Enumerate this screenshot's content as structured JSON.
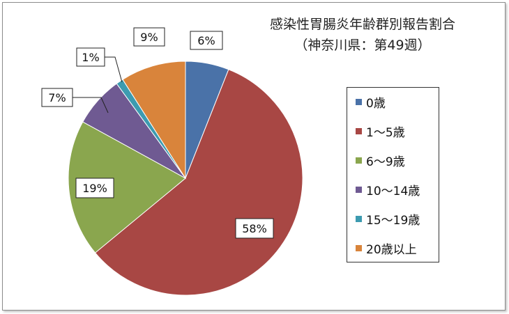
{
  "chart_data": {
    "type": "pie",
    "title": "感染性胃腸炎年齢群別報告割合",
    "subtitle": "（神奈川県：第49週）",
    "categories": [
      "0歳",
      "1〜5歳",
      "6〜9歳",
      "10〜14歳",
      "15〜19歳",
      "20歳以上"
    ],
    "values": [
      6,
      58,
      19,
      7,
      1,
      9
    ],
    "data_labels": [
      "6%",
      "58%",
      "19%",
      "7%",
      "1%",
      "9%"
    ],
    "colors": [
      "#4a72a8",
      "#a84744",
      "#8aa64e",
      "#6f5a92",
      "#3d9bb0",
      "#d9843b"
    ],
    "legend_position": "right",
    "start_angle": "12 o'clock, clockwise"
  }
}
